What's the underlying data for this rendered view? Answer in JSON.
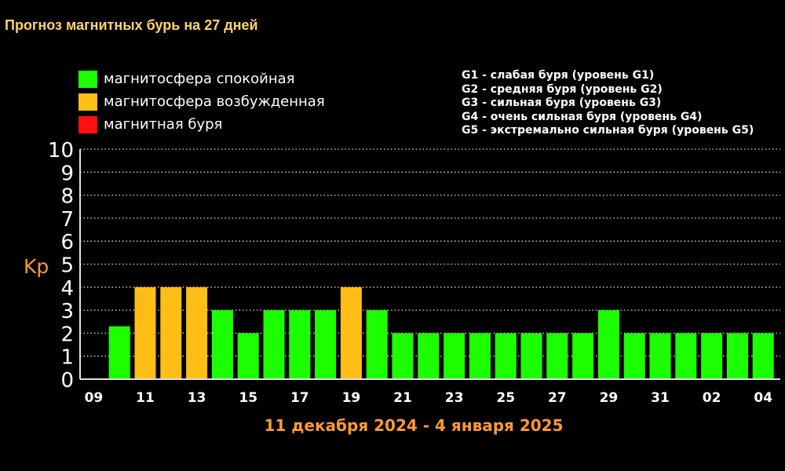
{
  "title": "Прогноз магнитных бурь на 27 дней",
  "legend": {
    "items": [
      {
        "label": "магнитосфера спокойная",
        "color": "#1bff00"
      },
      {
        "label": "магнитосфера возбужденная",
        "color": "#ffbe16"
      },
      {
        "label": "магнитная буря",
        "color": "#ff1010"
      }
    ],
    "levels": [
      "G1 - слабая буря (уровень G1)",
      "G2 - средняя буря (уровень G2)",
      "G3 - сильная буря (уровень G3)",
      "G4 - очень сильная буря (уровень G4)",
      "G5 - экстремально сильная буря (уровень G5)"
    ]
  },
  "colors": {
    "quiet": "#1bff00",
    "excited": "#ffbe16",
    "storm": "#ff1010",
    "axis_text": "#ffffff",
    "ylabel": "#ff9933",
    "date_range": "#ff9933"
  },
  "chart_data": {
    "type": "bar",
    "title": "Прогноз магнитных бурь на 27 дней",
    "ylabel": "Kp",
    "xlabel": "11 декабря 2024 - 4 января 2025",
    "ylim": [
      0,
      10
    ],
    "yticks": [
      "0",
      "1",
      "2",
      "3",
      "4",
      "5",
      "6",
      "7",
      "8",
      "9",
      "10"
    ],
    "grid": true,
    "xticks": [
      "09",
      "11",
      "13",
      "15",
      "17",
      "19",
      "21",
      "23",
      "25",
      "27",
      "29",
      "31",
      "02",
      "04"
    ],
    "series": [
      {
        "values": [
          2.3,
          4,
          4,
          4,
          3,
          2,
          3,
          3,
          3,
          4,
          3,
          2,
          2,
          2,
          2,
          2,
          2,
          2,
          2,
          3,
          2,
          2,
          2,
          2,
          2,
          2
        ],
        "levels": [
          "quiet",
          "excited",
          "excited",
          "excited",
          "quiet",
          "quiet",
          "quiet",
          "quiet",
          "quiet",
          "excited",
          "quiet",
          "quiet",
          "quiet",
          "quiet",
          "quiet",
          "quiet",
          "quiet",
          "quiet",
          "quiet",
          "quiet",
          "quiet",
          "quiet",
          "quiet",
          "quiet",
          "quiet",
          "quiet"
        ]
      }
    ]
  }
}
